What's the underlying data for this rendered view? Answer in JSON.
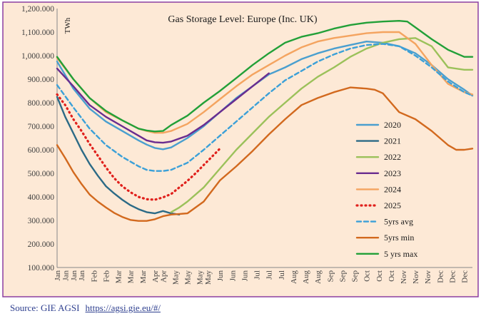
{
  "chart_data": {
    "type": "line",
    "title": "Gas Storage Level: Europe (Inc. UK)",
    "ylabel": "TWh",
    "xlabel": "",
    "ylim": [
      100,
      1200
    ],
    "yticks": [
      "100.000",
      "200.000",
      "300.000",
      "400.000",
      "500.000",
      "600.000",
      "700.000",
      "800.000",
      "900.000",
      "1,000.000",
      "1,100.000",
      "1,200.000"
    ],
    "ytick_values": [
      100,
      200,
      300,
      400,
      500,
      600,
      700,
      800,
      900,
      1000,
      1100,
      1200
    ],
    "xlim": [
      1,
      52
    ],
    "xticks": [
      "Jan",
      "Jan",
      "Jan",
      "Jan",
      "Feb",
      "Feb",
      "Mar",
      "Mar",
      "Mar",
      "Apr",
      "Apr",
      "May",
      "May",
      "May",
      "May",
      "Jun",
      "Jun",
      "Jun",
      "Jul",
      "Jul",
      "Jul",
      "Aug",
      "Aug",
      "Aug",
      "Sep",
      "Sep",
      "Sep",
      "Oct",
      "Oct",
      "Oct",
      "Nov",
      "Nov",
      "Nov",
      "Dec",
      "Dec",
      "Dec"
    ],
    "xtick_weeks": [
      1,
      2,
      3,
      4,
      5.5,
      7,
      8.5,
      10,
      11.5,
      13,
      14,
      15.5,
      17,
      18.5,
      19.5,
      21,
      22.5,
      24,
      25.5,
      27,
      28.5,
      30,
      31.5,
      33,
      34.5,
      36,
      37.5,
      39,
      40.5,
      42,
      43.5,
      45,
      46.5,
      48,
      49.5,
      51
    ],
    "grid": false,
    "legend": "right",
    "series": [
      {
        "name": "2020",
        "color": "#4a9fcf",
        "dash": "solid",
        "x": [
          1,
          3,
          5,
          7,
          9,
          11,
          12,
          13,
          14,
          15,
          17,
          19,
          21,
          23,
          25,
          27,
          29,
          31,
          33,
          35,
          37,
          39,
          41,
          43,
          45,
          47,
          49,
          51,
          52
        ],
        "y": [
          975,
          860,
          775,
          720,
          680,
          640,
          622,
          608,
          602,
          610,
          650,
          700,
          760,
          820,
          870,
          920,
          950,
          985,
          1010,
          1030,
          1045,
          1060,
          1055,
          1040,
          1010,
          960,
          900,
          855,
          830
        ]
      },
      {
        "name": "2021",
        "color": "#2b6a86",
        "dash": "solid",
        "x": [
          1,
          2,
          3,
          4,
          5,
          6,
          7,
          8,
          9,
          10,
          11,
          12,
          13,
          14,
          15,
          16
        ],
        "y": [
          825,
          740,
          670,
          600,
          540,
          490,
          445,
          415,
          388,
          365,
          348,
          335,
          330,
          340,
          330,
          325
        ]
      },
      {
        "name": "2022",
        "color": "#9bc15a",
        "dash": "solid",
        "x": [
          15,
          16,
          17,
          19,
          21,
          23,
          25,
          27,
          29,
          31,
          33,
          35,
          37,
          39,
          41,
          43,
          45,
          47,
          49,
          51,
          52
        ],
        "y": [
          335,
          355,
          380,
          440,
          520,
          600,
          670,
          740,
          800,
          860,
          910,
          950,
          995,
          1030,
          1055,
          1070,
          1075,
          1040,
          950,
          940,
          940
        ]
      },
      {
        "name": "2023",
        "color": "#6a2c8f",
        "dash": "solid",
        "x": [
          1,
          3,
          5,
          7,
          9,
          11,
          12,
          13,
          14,
          15,
          17,
          19,
          21,
          23,
          25,
          27
        ],
        "y": [
          945,
          870,
          790,
          740,
          700,
          660,
          640,
          632,
          630,
          635,
          660,
          705,
          760,
          815,
          870,
          925
        ]
      },
      {
        "name": "2024",
        "color": "#f4a460",
        "dash": "solid",
        "x": [
          1,
          3,
          5,
          7,
          9,
          11,
          12,
          13,
          14,
          15,
          17,
          19,
          21,
          23,
          25,
          27,
          29,
          31,
          33,
          35,
          37,
          39,
          41,
          43,
          45,
          47,
          49,
          51,
          52
        ],
        "y": [
          990,
          900,
          820,
          760,
          725,
          690,
          680,
          672,
          672,
          680,
          710,
          760,
          815,
          870,
          920,
          960,
          1000,
          1035,
          1060,
          1075,
          1085,
          1095,
          1100,
          1100,
          1050,
          960,
          880,
          845,
          835
        ]
      },
      {
        "name": "2025",
        "color": "#e0201c",
        "dash": "dotted",
        "x": [
          1,
          2,
          3,
          4,
          5,
          6,
          7,
          8,
          9,
          10,
          11,
          12,
          13,
          14,
          15,
          16,
          17,
          18,
          19,
          20,
          21
        ],
        "y": [
          835,
          790,
          730,
          680,
          625,
          575,
          525,
          480,
          445,
          420,
          400,
          390,
          388,
          398,
          412,
          440,
          468,
          500,
          535,
          570,
          605
        ]
      },
      {
        "name": "5yrs avg",
        "color": "#3ba0d8",
        "dash": "dashed",
        "x": [
          1,
          3,
          5,
          7,
          9,
          11,
          12,
          13,
          14,
          15,
          17,
          19,
          21,
          23,
          25,
          27,
          29,
          31,
          33,
          35,
          37,
          39,
          41,
          43,
          45,
          47,
          49,
          51,
          52
        ],
        "y": [
          875,
          780,
          690,
          620,
          570,
          530,
          515,
          510,
          510,
          515,
          545,
          600,
          660,
          720,
          780,
          840,
          895,
          935,
          975,
          1005,
          1030,
          1045,
          1050,
          1040,
          1000,
          950,
          890,
          845,
          830
        ]
      },
      {
        "name": "5yrs min",
        "color": "#d2691e",
        "dash": "solid",
        "x": [
          1,
          2,
          3,
          4,
          5,
          6,
          7,
          8,
          9,
          10,
          11,
          12,
          13,
          14,
          15,
          17,
          19,
          21,
          23,
          25,
          27,
          29,
          31,
          33,
          35,
          37,
          39,
          40,
          41,
          42,
          43,
          45,
          47,
          49,
          50,
          51,
          52
        ],
        "y": [
          620,
          565,
          505,
          455,
          410,
          380,
          355,
          332,
          315,
          302,
          298,
          298,
          305,
          318,
          325,
          330,
          380,
          470,
          530,
          595,
          665,
          730,
          790,
          820,
          845,
          865,
          860,
          855,
          840,
          800,
          760,
          730,
          680,
          620,
          600,
          600,
          605
        ]
      },
      {
        "name": "5 yrs max",
        "color": "#22a038",
        "dash": "solid",
        "x": [
          1,
          3,
          5,
          7,
          9,
          11,
          12,
          13,
          14,
          15,
          17,
          19,
          21,
          23,
          25,
          27,
          29,
          31,
          33,
          35,
          37,
          39,
          41,
          43,
          44,
          45,
          47,
          49,
          51,
          52
        ],
        "y": [
          995,
          900,
          820,
          765,
          725,
          690,
          682,
          678,
          680,
          705,
          745,
          800,
          850,
          905,
          960,
          1010,
          1055,
          1080,
          1095,
          1115,
          1130,
          1140,
          1145,
          1148,
          1145,
          1120,
          1070,
          1025,
          995,
          995
        ]
      }
    ]
  },
  "footer": {
    "source_label": "Source: GIE AGSI",
    "source_link": "https://agsi.gie.eu/#/"
  },
  "colors": {
    "frame_border": "#8b3fa0",
    "plot_background": "#fde9d6",
    "axis_text": "#404040"
  }
}
